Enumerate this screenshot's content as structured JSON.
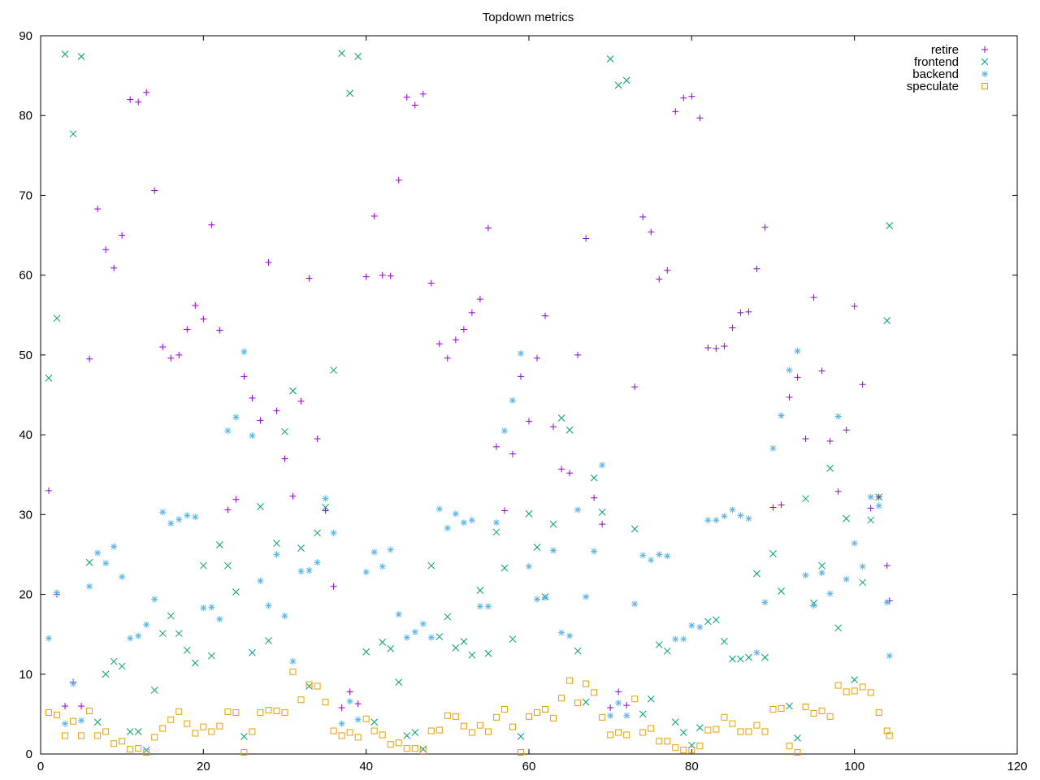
{
  "chart_data": {
    "type": "scatter",
    "title": "Topdown metrics",
    "xlabel": "",
    "ylabel": "",
    "xlim": [
      0,
      120
    ],
    "ylim": [
      0,
      90
    ],
    "xticks": [
      "0",
      "20",
      "40",
      "60",
      "80",
      "100",
      "120"
    ],
    "yticks": [
      "0",
      "10",
      "20",
      "30",
      "40",
      "50",
      "60",
      "70",
      "80",
      "90"
    ],
    "xtick_values": [
      0,
      20,
      40,
      60,
      80,
      100,
      120
    ],
    "ytick_values": [
      0,
      10,
      20,
      30,
      40,
      50,
      60,
      70,
      80,
      90
    ],
    "grid": false,
    "legend_position": "top-right",
    "series": [
      {
        "name": "retire",
        "marker": "plus",
        "color": "#9400d3",
        "x": [
          1,
          2,
          3,
          4,
          5,
          6,
          7,
          8,
          9,
          10,
          11,
          12,
          13,
          14,
          15,
          16,
          17,
          18,
          19,
          20,
          21,
          22,
          23,
          24,
          25,
          26,
          27,
          28,
          29,
          30,
          31,
          32,
          33,
          34,
          35,
          36,
          37,
          38,
          39,
          40,
          41,
          42,
          43,
          44,
          45,
          46,
          47,
          48,
          49,
          50,
          51,
          52,
          53,
          54,
          55,
          56,
          57,
          58,
          59,
          60,
          61,
          62,
          63,
          64,
          65,
          66,
          67,
          68,
          69,
          70,
          71,
          72,
          73,
          74,
          75,
          76,
          77,
          78,
          79,
          80,
          81,
          82,
          83,
          84,
          85,
          86,
          87,
          88,
          89,
          90,
          91,
          92,
          93,
          94,
          95,
          96,
          97,
          98,
          99,
          100,
          101,
          102,
          103,
          104,
          104.3
        ],
        "y": [
          33,
          20,
          6,
          9,
          6,
          49.5,
          68.3,
          63.2,
          60.9,
          65,
          82,
          81.7,
          82.9,
          70.6,
          51,
          49.6,
          50,
          53.2,
          56.2,
          54.5,
          66.3,
          53.1,
          30.6,
          31.9,
          47.3,
          44.6,
          41.8,
          61.6,
          43,
          37,
          32.3,
          44.2,
          59.6,
          39.5,
          30.5,
          21,
          5.8,
          7.8,
          6.3,
          59.8,
          67.4,
          60,
          59.9,
          71.9,
          82.3,
          81.3,
          82.7,
          59,
          51.4,
          49.6,
          51.9,
          53.2,
          55.3,
          57,
          65.9,
          38.5,
          30.5,
          37.6,
          47.3,
          41.7,
          49.6,
          54.9,
          41,
          35.7,
          35.2,
          50,
          64.6,
          32.1,
          28.8,
          5.8,
          7.8,
          6.1,
          46,
          67.3,
          65.4,
          59.5,
          60.6,
          80.5,
          82.2,
          82.4,
          79.7,
          50.9,
          50.8,
          51.1,
          53.4,
          55.3,
          55.4,
          60.8,
          66,
          30.9,
          31.2,
          44.7,
          47.2,
          39.5,
          57.2,
          48,
          39.2,
          32.9,
          40.6,
          56.1,
          46.3,
          30.8,
          32.2,
          23.6,
          19.2
        ]
      },
      {
        "name": "frontend",
        "marker": "x",
        "color": "#009e73",
        "x": [
          1,
          2,
          3,
          4,
          5,
          6,
          7,
          8,
          9,
          10,
          11,
          12,
          13,
          14,
          15,
          16,
          17,
          18,
          19,
          20,
          21,
          22,
          23,
          24,
          25,
          26,
          27,
          28,
          29,
          30,
          31,
          32,
          33,
          34,
          35,
          36,
          37,
          38,
          39,
          40,
          41,
          42,
          43,
          44,
          45,
          46,
          47,
          48,
          49,
          50,
          51,
          52,
          53,
          54,
          55,
          56,
          57,
          58,
          59,
          60,
          61,
          62,
          63,
          64,
          65,
          66,
          67,
          68,
          69,
          70,
          71,
          72,
          73,
          74,
          75,
          76,
          77,
          78,
          79,
          80,
          81,
          82,
          83,
          84,
          85,
          86,
          87,
          88,
          89,
          90,
          91,
          92,
          93,
          94,
          95,
          96,
          97,
          98,
          99,
          100,
          101,
          102,
          103,
          104,
          104.3
        ],
        "y": [
          47.1,
          54.6,
          87.7,
          77.7,
          87.4,
          24,
          4,
          10,
          11.6,
          11,
          2.8,
          2.8,
          0.5,
          8,
          15.1,
          17.3,
          15.1,
          13,
          11.4,
          23.6,
          12.3,
          26.2,
          23.6,
          20.3,
          2.2,
          12.7,
          31,
          14.2,
          26.4,
          40.4,
          45.5,
          25.8,
          8.5,
          27.7,
          30.9,
          48.1,
          87.8,
          82.8,
          87.4,
          12.8,
          4,
          14,
          13.2,
          9,
          2.3,
          2.7,
          0.6,
          23.6,
          14.7,
          17.2,
          13.3,
          14.1,
          12.4,
          20.5,
          12.6,
          27.8,
          23.3,
          14.4,
          2.2,
          30.1,
          25.9,
          19.7,
          28.8,
          42.1,
          40.6,
          12.9,
          6.5,
          34.6,
          30.3,
          87.1,
          83.8,
          84.4,
          28.2,
          5,
          6.9,
          13.7,
          12.9,
          4,
          2.7,
          1.1,
          3.3,
          16.6,
          16.8,
          14.1,
          11.9,
          11.9,
          12.1,
          22.6,
          12.1,
          25.1,
          20.4,
          6,
          2,
          32,
          18.9,
          23.6,
          35.8,
          15.8,
          29.5,
          9.3,
          21.5,
          29.3,
          32.2,
          54.3,
          66.2
        ]
      },
      {
        "name": "backend",
        "marker": "star",
        "color": "#56b4e9",
        "x": [
          1,
          2,
          3,
          4,
          5,
          6,
          7,
          8,
          9,
          10,
          11,
          12,
          13,
          14,
          15,
          16,
          17,
          18,
          19,
          20,
          21,
          22,
          23,
          24,
          25,
          26,
          27,
          28,
          29,
          30,
          31,
          32,
          33,
          34,
          35,
          36,
          37,
          38,
          39,
          40,
          41,
          42,
          43,
          44,
          45,
          46,
          47,
          48,
          49,
          50,
          51,
          52,
          53,
          54,
          55,
          56,
          57,
          58,
          59,
          60,
          61,
          62,
          63,
          64,
          65,
          66,
          67,
          68,
          69,
          70,
          71,
          72,
          73,
          74,
          75,
          76,
          77,
          78,
          79,
          80,
          81,
          82,
          83,
          84,
          85,
          86,
          87,
          88,
          89,
          90,
          91,
          92,
          93,
          94,
          95,
          96,
          97,
          98,
          99,
          100,
          101,
          102,
          103,
          104,
          104.3
        ],
        "y": [
          14.5,
          20.2,
          3.8,
          8.8,
          4.2,
          21,
          25.2,
          23.9,
          26,
          22.2,
          14.5,
          14.8,
          16.2,
          19.4,
          30.3,
          28.9,
          29.4,
          29.9,
          29.7,
          18.3,
          18.4,
          16.9,
          40.5,
          42.2,
          50.4,
          39.9,
          21.7,
          18.6,
          25,
          17.3,
          11.6,
          22.9,
          23,
          24,
          32,
          27.7,
          3.8,
          6.6,
          4.3,
          22.8,
          25.3,
          23.5,
          25.6,
          17.5,
          14.6,
          15.3,
          16.3,
          14.6,
          30.7,
          28.3,
          30.1,
          29,
          29.3,
          18.5,
          18.5,
          29,
          40.5,
          44.3,
          50.2,
          23.5,
          19.4,
          19.6,
          25.5,
          15.2,
          14.8,
          30.6,
          19.7,
          25.4,
          36.2,
          4.8,
          6.4,
          4.8,
          18.8,
          24.9,
          24.3,
          25,
          24.8,
          14.4,
          14.4,
          16.1,
          15.9,
          29.3,
          29.3,
          29.8,
          30.6,
          29.9,
          29.5,
          12.7,
          19,
          38.3,
          42.4,
          48.1,
          50.5,
          22.4,
          18.6,
          22.7,
          20.1,
          42.3,
          21.9,
          26.4,
          23.5,
          32.2,
          31.1,
          19,
          12.3
        ]
      },
      {
        "name": "speculate",
        "marker": "square",
        "color": "#e69f00",
        "x": [
          1,
          2,
          3,
          4,
          5,
          6,
          7,
          8,
          9,
          10,
          11,
          12,
          13,
          14,
          15,
          16,
          17,
          18,
          19,
          20,
          21,
          22,
          23,
          24,
          25,
          26,
          27,
          28,
          29,
          30,
          31,
          32,
          33,
          34,
          35,
          36,
          37,
          38,
          39,
          40,
          41,
          42,
          43,
          44,
          45,
          46,
          47,
          48,
          49,
          50,
          51,
          52,
          53,
          54,
          55,
          56,
          57,
          58,
          59,
          60,
          61,
          62,
          63,
          64,
          65,
          66,
          67,
          68,
          69,
          70,
          71,
          72,
          73,
          74,
          75,
          76,
          77,
          78,
          79,
          80,
          81,
          82,
          83,
          84,
          85,
          86,
          87,
          88,
          89,
          90,
          91,
          92,
          93,
          94,
          95,
          96,
          97,
          98,
          99,
          100,
          101,
          102,
          103,
          104,
          104.3
        ],
        "y": [
          5.2,
          4.9,
          2.3,
          4.1,
          2.3,
          5.4,
          2.3,
          2.8,
          1.3,
          1.6,
          0.6,
          0.7,
          0.2,
          2.1,
          3.2,
          4.3,
          5.3,
          3.8,
          2.6,
          3.4,
          2.8,
          3.5,
          5.3,
          5.2,
          0.2,
          2.8,
          5.2,
          5.5,
          5.4,
          5.2,
          10.3,
          6.8,
          8.7,
          8.5,
          6.5,
          2.9,
          2.3,
          2.7,
          2.1,
          4.4,
          2.9,
          2.4,
          1.2,
          1.4,
          0.7,
          0.7,
          0.4,
          2.9,
          3,
          4.8,
          4.7,
          3.5,
          2.7,
          3.6,
          2.8,
          4.6,
          5.6,
          3.4,
          0.2,
          4.7,
          5.2,
          5.6,
          4.5,
          7,
          9.2,
          6.4,
          8.8,
          7.7,
          4.6,
          2.4,
          2.7,
          2.4,
          6.9,
          2.7,
          3.2,
          1.6,
          1.6,
          0.8,
          0.5,
          0.5,
          1,
          3,
          3.1,
          4.6,
          3.8,
          2.8,
          2.8,
          3.6,
          2.8,
          5.6,
          5.7,
          1,
          0.2,
          5.9,
          5.1,
          5.4,
          4.7,
          8.6,
          7.8,
          7.9,
          8.4,
          7.7,
          5.2,
          2.9,
          2.3
        ]
      }
    ]
  }
}
